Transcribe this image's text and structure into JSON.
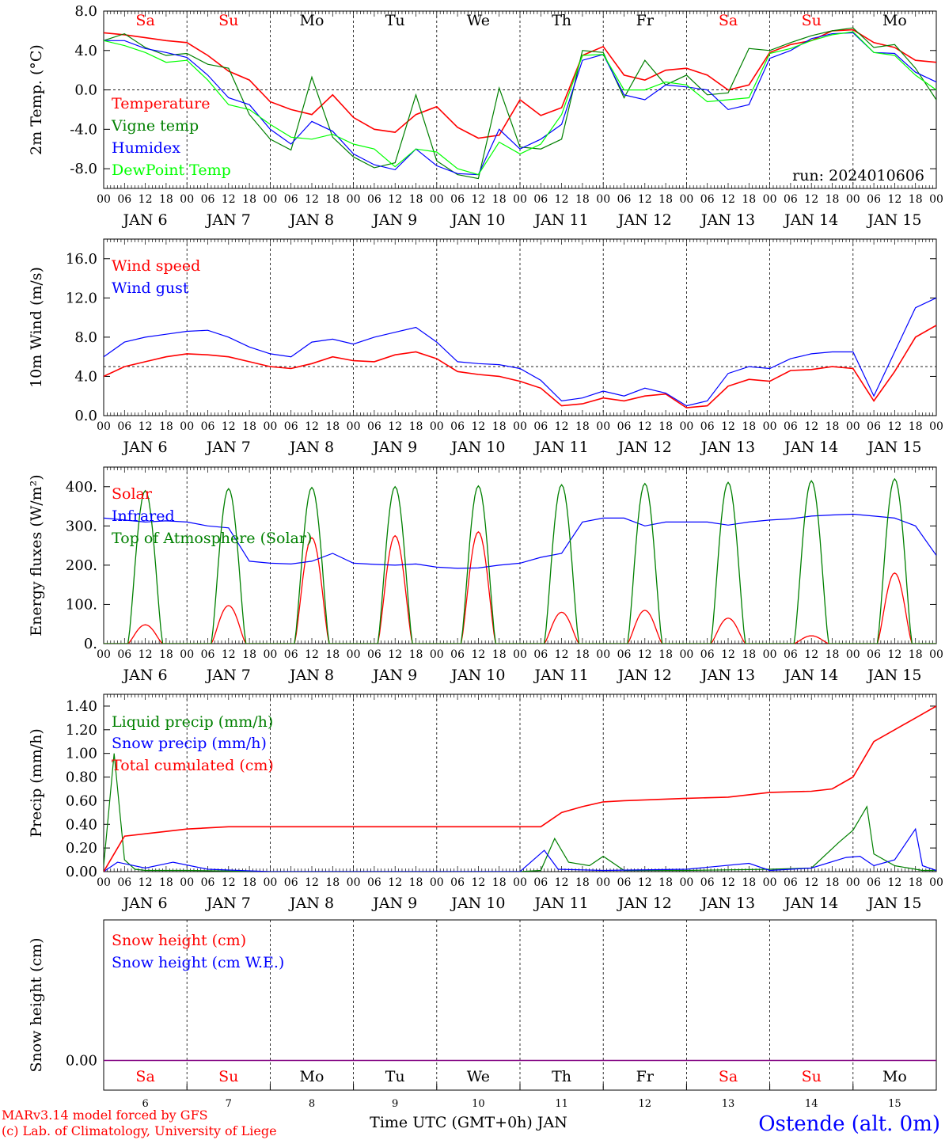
{
  "run_label": "run: 2024010606",
  "time_axis": {
    "hour_labels": [
      "00",
      "06",
      "12",
      "18"
    ],
    "dates": [
      "JAN 6",
      "JAN 7",
      "JAN 8",
      "JAN 9",
      "JAN 10",
      "JAN 11",
      "JAN 12",
      "JAN 13",
      "JAN 14",
      "JAN 15"
    ],
    "weekdays": [
      "Sa",
      "Su",
      "Mo",
      "Tu",
      "We",
      "Th",
      "Fr",
      "Sa",
      "Su",
      "Mo"
    ],
    "weekday_colors": [
      "#ff0000",
      "#ff0000",
      "#000000",
      "#000000",
      "#000000",
      "#000000",
      "#000000",
      "#ff0000",
      "#ff0000",
      "#000000"
    ],
    "bottom_day_numbers": [
      "6",
      "7",
      "8",
      "9",
      "10",
      "11",
      "12",
      "13",
      "14",
      "15"
    ],
    "xlabel": "Time UTC (GMT+0h) JAN"
  },
  "footer": {
    "model_line1": "MARv3.14 model forced by GFS",
    "model_line2": "(c) Lab. of Climatology, University of Liege",
    "station": "Ostende (alt. 0m)"
  },
  "chart_data": [
    {
      "type": "line",
      "ylabel": "2m Temp. (°C)",
      "ylim": [
        -10,
        8
      ],
      "yticks": [
        8,
        4,
        0,
        -4,
        -8
      ],
      "ytick_labels": [
        "8.0",
        "4.0",
        "0.0",
        "-4.0",
        "-8.0"
      ],
      "reference_line": 0,
      "x_hours": [
        0,
        6,
        12,
        18,
        24,
        30,
        36,
        42,
        48,
        54,
        60,
        66,
        72,
        78,
        84,
        90,
        96,
        102,
        108,
        114,
        120,
        126,
        132,
        138,
        144,
        150,
        156,
        162,
        168,
        174,
        180,
        186,
        192,
        198,
        204,
        210,
        216,
        222,
        228,
        234,
        240
      ],
      "series": [
        {
          "name": "Temperature",
          "color": "#ff0000",
          "values": [
            5.8,
            5.6,
            5.3,
            5.0,
            4.8,
            3.5,
            1.9,
            1.0,
            -1.2,
            -2.0,
            -2.5,
            -0.5,
            -2.8,
            -4.0,
            -4.3,
            -2.5,
            -1.7,
            -3.8,
            -4.9,
            -4.6,
            -1.0,
            -2.6,
            -1.8,
            3.5,
            4.4,
            1.5,
            1.0,
            2.0,
            2.2,
            1.5,
            0.0,
            0.5,
            3.8,
            4.6,
            5.0,
            6.0,
            6.1,
            4.8,
            4.3,
            3.0,
            2.8
          ]
        },
        {
          "name": "Vigne temp",
          "color": "#008000",
          "values": [
            5.0,
            5.7,
            4.3,
            3.5,
            3.7,
            2.6,
            2.2,
            -2.5,
            -5.0,
            -6.1,
            1.3,
            -4.8,
            -6.8,
            -7.9,
            -7.4,
            -0.5,
            -7.2,
            -8.6,
            -9.0,
            0.2,
            -5.8,
            -6.0,
            -5.0,
            4.0,
            3.8,
            -0.8,
            3.0,
            0.5,
            1.5,
            -0.5,
            -0.3,
            4.2,
            4.0,
            4.8,
            5.5,
            6.0,
            6.3,
            4.3,
            4.6,
            2.2,
            -1.0
          ]
        },
        {
          "name": "Humidex",
          "color": "#0000ff",
          "values": [
            5.0,
            5.0,
            4.2,
            3.8,
            3.3,
            1.5,
            -0.8,
            -1.5,
            -4.0,
            -5.5,
            -3.2,
            -4.2,
            -6.5,
            -7.6,
            -8.1,
            -6.0,
            -7.7,
            -8.5,
            -8.6,
            -4.0,
            -6.0,
            -5.0,
            -3.5,
            3.0,
            3.6,
            -0.5,
            -1.0,
            0.5,
            0.3,
            0.0,
            -2.0,
            -1.5,
            3.2,
            4.0,
            5.2,
            5.7,
            5.8,
            3.8,
            3.7,
            1.8,
            0.8
          ]
        },
        {
          "name": "DewPoint Temp",
          "color": "#00ff00",
          "values": [
            5.0,
            4.5,
            3.8,
            2.8,
            3.0,
            1.0,
            -1.5,
            -2.0,
            -3.5,
            -4.8,
            -5.0,
            -4.5,
            -5.5,
            -6.0,
            -7.8,
            -6.0,
            -6.3,
            -8.0,
            -8.6,
            -5.3,
            -6.5,
            -5.5,
            -2.5,
            3.5,
            3.6,
            0.0,
            0.0,
            0.8,
            0.5,
            -1.2,
            -1.0,
            -0.8,
            3.7,
            4.2,
            5.0,
            5.6,
            5.9,
            3.8,
            3.5,
            1.5,
            0.0
          ]
        }
      ]
    },
    {
      "type": "line",
      "ylabel": "10m Wind (m/s)",
      "ylim": [
        0,
        18
      ],
      "yticks": [
        0,
        4,
        8,
        12,
        16
      ],
      "ytick_labels": [
        "0.0",
        "4.0",
        "8.0",
        "12.0",
        "16.0"
      ],
      "reference_line": 5,
      "x_hours": [
        0,
        6,
        12,
        18,
        24,
        30,
        36,
        42,
        48,
        54,
        60,
        66,
        72,
        78,
        84,
        90,
        96,
        102,
        108,
        114,
        120,
        126,
        132,
        138,
        144,
        150,
        156,
        162,
        168,
        174,
        180,
        186,
        192,
        198,
        204,
        210,
        216,
        222,
        228,
        234,
        240
      ],
      "series": [
        {
          "name": "Wind speed",
          "color": "#ff0000",
          "values": [
            4.0,
            5.0,
            5.5,
            6.0,
            6.3,
            6.2,
            6.0,
            5.5,
            5.0,
            4.8,
            5.3,
            6.0,
            5.6,
            5.5,
            6.2,
            6.5,
            5.8,
            4.5,
            4.2,
            4.0,
            3.5,
            2.8,
            1.0,
            1.2,
            1.8,
            1.5,
            2.0,
            2.2,
            0.8,
            1.0,
            3.0,
            3.7,
            3.5,
            4.6,
            4.7,
            5.0,
            4.8,
            1.5,
            4.5,
            8.0,
            9.2
          ]
        },
        {
          "name": "Wind gust",
          "color": "#0000ff",
          "values": [
            6.0,
            7.5,
            8.0,
            8.3,
            8.6,
            8.7,
            8.0,
            7.0,
            6.3,
            6.0,
            7.5,
            7.8,
            7.3,
            8.0,
            8.5,
            9.0,
            7.5,
            5.5,
            5.3,
            5.2,
            4.8,
            3.6,
            1.5,
            1.8,
            2.5,
            2.0,
            2.8,
            2.3,
            1.0,
            1.5,
            4.3,
            5.0,
            4.8,
            5.8,
            6.3,
            6.5,
            6.5,
            2.0,
            6.5,
            11.0,
            12.0
          ]
        }
      ]
    },
    {
      "type": "line",
      "ylabel": "Energy fluxes (W/m²)",
      "ylim": [
        0,
        450
      ],
      "yticks": [
        0,
        100,
        200,
        300,
        400
      ],
      "ytick_labels": [
        "0.",
        "100.",
        "200.",
        "300.",
        "400."
      ],
      "series": [
        {
          "name": "Solar",
          "color": "#ff0000",
          "day_peaks": [
            48,
            97,
            270,
            275,
            285,
            80,
            85,
            65,
            20,
            180
          ]
        },
        {
          "name": "Infrared",
          "color": "#0000ff",
          "x_hours": [
            0,
            6,
            12,
            18,
            24,
            30,
            36,
            42,
            48,
            54,
            60,
            66,
            72,
            78,
            84,
            90,
            96,
            102,
            108,
            114,
            120,
            126,
            132,
            138,
            144,
            150,
            156,
            162,
            168,
            174,
            180,
            186,
            192,
            198,
            204,
            210,
            216,
            222,
            228,
            234,
            240
          ],
          "values": [
            320,
            315,
            310,
            313,
            310,
            300,
            295,
            210,
            205,
            203,
            210,
            230,
            205,
            202,
            200,
            203,
            195,
            192,
            193,
            200,
            205,
            220,
            230,
            310,
            320,
            320,
            300,
            310,
            310,
            310,
            302,
            310,
            315,
            318,
            325,
            328,
            330,
            325,
            320,
            300,
            225
          ]
        },
        {
          "name": "Top of Atmosphere (Solar)",
          "color": "#008000",
          "day_peaks": [
            390,
            395,
            398,
            400,
            402,
            405,
            408,
            411,
            415,
            420
          ]
        }
      ]
    },
    {
      "type": "line",
      "ylabel": "Precip (mm/h)",
      "ylim": [
        0,
        1.5
      ],
      "yticks": [
        0,
        0.2,
        0.4,
        0.6,
        0.8,
        1.0,
        1.2,
        1.4
      ],
      "ytick_labels": [
        "0.00",
        "0.20",
        "0.40",
        "0.60",
        "0.80",
        "1.00",
        "1.20",
        "1.40"
      ],
      "series": [
        {
          "name": "Liquid precip (mm/h)",
          "color": "#008000",
          "x_hours": [
            0,
            3,
            6,
            9,
            12,
            24,
            48,
            120,
            126,
            130,
            134,
            140,
            144,
            150,
            168,
            192,
            204,
            212,
            216,
            220,
            222,
            228,
            236,
            240
          ],
          "values": [
            0.05,
            1.0,
            0.1,
            0.02,
            0.01,
            0.01,
            0.0,
            0.0,
            0.01,
            0.28,
            0.08,
            0.05,
            0.13,
            0.01,
            0.01,
            0.02,
            0.03,
            0.25,
            0.35,
            0.55,
            0.15,
            0.05,
            0.01,
            0.01
          ]
        },
        {
          "name": "Snow precip (mm/h)",
          "color": "#0000ff",
          "x_hours": [
            0,
            4,
            12,
            20,
            30,
            48,
            120,
            127,
            131,
            144,
            168,
            186,
            192,
            204,
            214,
            218,
            222,
            228,
            234,
            236,
            240
          ],
          "values": [
            0.0,
            0.08,
            0.03,
            0.08,
            0.02,
            0.0,
            0.0,
            0.18,
            0.02,
            0.01,
            0.02,
            0.07,
            0.01,
            0.03,
            0.12,
            0.13,
            0.05,
            0.1,
            0.36,
            0.05,
            0.01
          ]
        },
        {
          "name": "Total cumulated (cm)",
          "color": "#ff0000",
          "x_hours": [
            0,
            6,
            12,
            18,
            24,
            36,
            48,
            72,
            96,
            120,
            126,
            132,
            138,
            144,
            150,
            168,
            180,
            192,
            204,
            210,
            216,
            222,
            228,
            234,
            240
          ],
          "values": [
            0.0,
            0.3,
            0.32,
            0.34,
            0.36,
            0.38,
            0.38,
            0.38,
            0.38,
            0.38,
            0.38,
            0.5,
            0.55,
            0.59,
            0.6,
            0.62,
            0.63,
            0.67,
            0.68,
            0.7,
            0.8,
            1.1,
            1.2,
            1.3,
            1.4
          ]
        }
      ]
    },
    {
      "type": "line",
      "ylabel": "Snow height (cm)",
      "ytick_labels": [
        "0.00"
      ],
      "series": [
        {
          "name": "Snow height (cm)",
          "color": "#ff0000",
          "values": [
            0.0,
            0.0
          ]
        },
        {
          "name": "Snow height (cm W.E.)",
          "color": "#0000ff",
          "values": [
            0.0,
            0.0
          ]
        }
      ]
    }
  ]
}
